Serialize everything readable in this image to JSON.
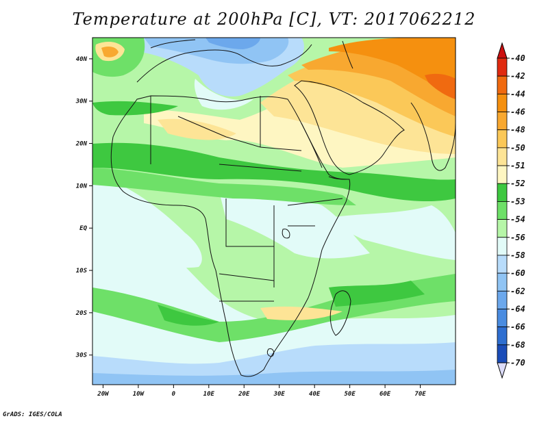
{
  "title": "Temperature at 200hPa [C], VT: 2017062212",
  "credit": "GrADS: IGES/COLA",
  "map": {
    "lon_range": [
      -23,
      80
    ],
    "lat_range": [
      -37,
      45
    ],
    "lon_ticks": [
      {
        "value": -20,
        "label": "20W"
      },
      {
        "value": -10,
        "label": "10W"
      },
      {
        "value": 0,
        "label": "0"
      },
      {
        "value": 10,
        "label": "10E"
      },
      {
        "value": 20,
        "label": "20E"
      },
      {
        "value": 30,
        "label": "30E"
      },
      {
        "value": 40,
        "label": "40E"
      },
      {
        "value": 50,
        "label": "50E"
      },
      {
        "value": 60,
        "label": "60E"
      },
      {
        "value": 70,
        "label": "70E"
      }
    ],
    "lat_ticks": [
      {
        "value": 40,
        "label": "40N"
      },
      {
        "value": 30,
        "label": "30N"
      },
      {
        "value": 20,
        "label": "20N"
      },
      {
        "value": 10,
        "label": "10N"
      },
      {
        "value": 0,
        "label": "EQ"
      },
      {
        "value": -10,
        "label": "10S"
      },
      {
        "value": -20,
        "label": "20S"
      },
      {
        "value": -30,
        "label": "30S"
      }
    ]
  },
  "colorbar": {
    "levels": [
      {
        "label": "-40",
        "color": "#e02a10"
      },
      {
        "label": "-42",
        "color": "#f06a10"
      },
      {
        "label": "-44",
        "color": "#f5900f"
      },
      {
        "label": "-46",
        "color": "#f8a830"
      },
      {
        "label": "-48",
        "color": "#fbc858"
      },
      {
        "label": "-50",
        "color": "#fde496"
      },
      {
        "label": "-51",
        "color": "#fef6c2"
      },
      {
        "label": "-52",
        "color": "#3ec840"
      },
      {
        "label": "-53",
        "color": "#6ee068"
      },
      {
        "label": "-54",
        "color": "#b6f6a8"
      },
      {
        "label": "-56",
        "color": "#e2fbf8"
      },
      {
        "label": "-58",
        "color": "#b8dcfb"
      },
      {
        "label": "-60",
        "color": "#90c4f4"
      },
      {
        "label": "-62",
        "color": "#6ca8ec"
      },
      {
        "label": "-64",
        "color": "#4a8ce0"
      },
      {
        "label": "-66",
        "color": "#2e6ed0"
      },
      {
        "label": "-68",
        "color": "#1a4cb8"
      },
      {
        "label": "-70",
        "color": "#0a1e80"
      }
    ],
    "top_color": "#cc1010",
    "bottom_color": "#dcdcf8"
  }
}
